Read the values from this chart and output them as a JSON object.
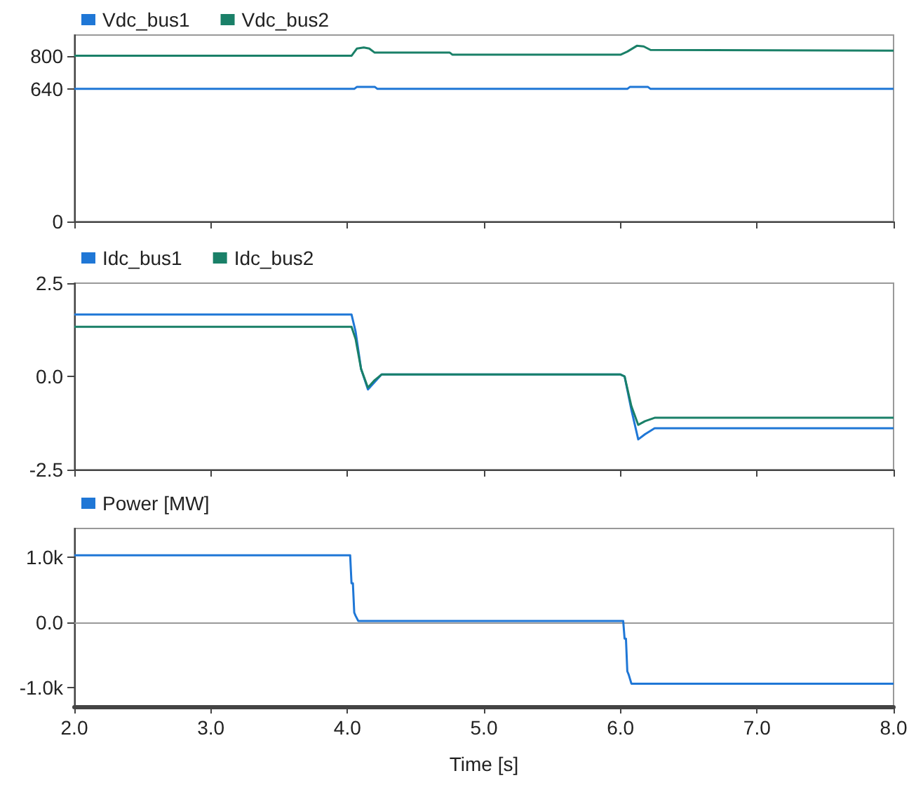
{
  "chart_data": [
    {
      "type": "line",
      "xlim": [
        2,
        8
      ],
      "xticks": [
        2,
        3,
        4,
        5,
        6,
        7,
        8
      ],
      "ylim": [
        0,
        900
      ],
      "yticks": [
        0,
        640,
        800
      ],
      "tick_labels": "y",
      "legend": "top left",
      "marker": "none",
      "series": [
        {
          "name": "Vdc_bus1",
          "color": "#1f77d6",
          "x": [
            2,
            4.05,
            4.07,
            4.2,
            4.22,
            6.05,
            6.07,
            6.2,
            6.22,
            8
          ],
          "values": [
            640,
            640,
            650,
            650,
            640,
            640,
            650,
            650,
            640,
            640
          ]
        },
        {
          "name": "Vdc_bus2",
          "color": "#1a8068",
          "x": [
            2,
            4.03,
            4.07,
            4.12,
            4.16,
            4.2,
            4.75,
            4.77,
            6.0,
            6.05,
            6.12,
            6.17,
            6.22,
            8
          ],
          "values": [
            800,
            800,
            835,
            840,
            835,
            815,
            815,
            805,
            805,
            820,
            848,
            845,
            828,
            825
          ]
        }
      ]
    },
    {
      "type": "line",
      "xlim": [
        2,
        8
      ],
      "xticks": [
        2,
        3,
        4,
        5,
        6,
        7,
        8
      ],
      "ylim": [
        -2.5,
        2.5
      ],
      "yticks": [
        -2.5,
        {
          "value": 0,
          "label": "0.0"
        },
        2.5
      ],
      "tick_labels": "y",
      "legend": "top left",
      "marker": "none",
      "series": [
        {
          "name": "Idc_bus1",
          "color": "#1f77d6",
          "x": [
            2,
            4.03,
            4.06,
            4.1,
            4.15,
            4.2,
            4.25,
            6.0,
            6.03,
            6.08,
            6.13,
            6.18,
            6.25,
            8
          ],
          "values": [
            1.66,
            1.66,
            1.2,
            0.2,
            -0.35,
            -0.15,
            0.05,
            0.05,
            0,
            -0.9,
            -1.69,
            -1.55,
            -1.39,
            -1.39
          ]
        },
        {
          "name": "Idc_bus2",
          "color": "#1a8068",
          "x": [
            2,
            4.03,
            4.06,
            4.1,
            4.15,
            4.2,
            4.25,
            6.0,
            6.03,
            6.08,
            6.13,
            6.18,
            6.25,
            8
          ],
          "values": [
            1.33,
            1.33,
            1.0,
            0.2,
            -0.3,
            -0.1,
            0.05,
            0.05,
            0,
            -0.8,
            -1.3,
            -1.2,
            -1.11,
            -1.11
          ]
        }
      ]
    },
    {
      "type": "line",
      "xlabel": "Time [s]",
      "xlim": [
        2,
        8
      ],
      "xticks": [
        {
          "value": 2,
          "label": "2.0"
        },
        {
          "value": 3,
          "label": "3.0"
        },
        {
          "value": 4,
          "label": "4.0"
        },
        {
          "value": 5,
          "label": "5.0"
        },
        {
          "value": 6,
          "label": "6.0"
        },
        {
          "value": 7,
          "label": "7.0"
        },
        {
          "value": 8,
          "label": "8.0"
        }
      ],
      "ylim": [
        -1290,
        1440
      ],
      "yticks": [
        {
          "value": -1000,
          "label": "-1.0k"
        },
        {
          "value": 0,
          "label": "0.0"
        },
        {
          "value": 1000,
          "label": "1.0k"
        }
      ],
      "legend": "top left",
      "marker": "none",
      "ref_lines": [
        {
          "axis": "y",
          "value": 0,
          "color": "#999999"
        }
      ],
      "series": [
        {
          "name": "Power [MW]",
          "color": "#1f77d6",
          "x": [
            2,
            4.02,
            4.03,
            4.04,
            4.05,
            4.06,
            4.08,
            6.02,
            6.03,
            6.04,
            6.05,
            6.06,
            6.08,
            8
          ],
          "values": [
            1030,
            1030,
            600,
            600,
            150,
            100,
            20,
            20,
            -250,
            -250,
            -750,
            -800,
            -940,
            -940
          ]
        }
      ]
    }
  ]
}
